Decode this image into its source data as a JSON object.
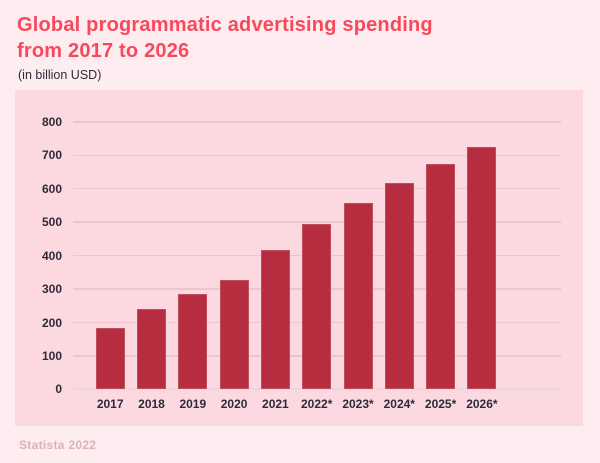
{
  "header": {
    "title_line1": "Global programmatic advertising spending",
    "title_line2": "from 2017 to 2026",
    "subtitle": "(in billion USD)"
  },
  "footer": {
    "source": "Statista 2022"
  },
  "colors": {
    "page_bg": "#fdedf0",
    "panel_bg": "#fcd9e0",
    "title_color": "#f8495c",
    "text_color": "#2f2a38",
    "bar_color": "#b52d3e",
    "grid_color": "#f1c3cd",
    "axis_color": "#e7dadc",
    "source_color": "#dbb1bb"
  },
  "chart_data": {
    "type": "bar",
    "title": "Global programmatic advertising spending from 2017 to 2026",
    "subtitle": "(in billion USD)",
    "categories": [
      "2017",
      "2018",
      "2019",
      "2020",
      "2021",
      "2022*",
      "2023*",
      "2024*",
      "2025*",
      "2026*"
    ],
    "values": [
      185,
      240,
      285,
      327,
      418,
      493,
      557,
      617,
      673,
      725
    ],
    "xlabel": "",
    "ylabel": "",
    "ylim": [
      0,
      800
    ],
    "yticks": [
      0,
      100,
      200,
      300,
      400,
      500,
      600,
      700,
      800
    ],
    "ytick_step": 100,
    "grid": true,
    "legend": false,
    "source": "Statista 2022"
  }
}
